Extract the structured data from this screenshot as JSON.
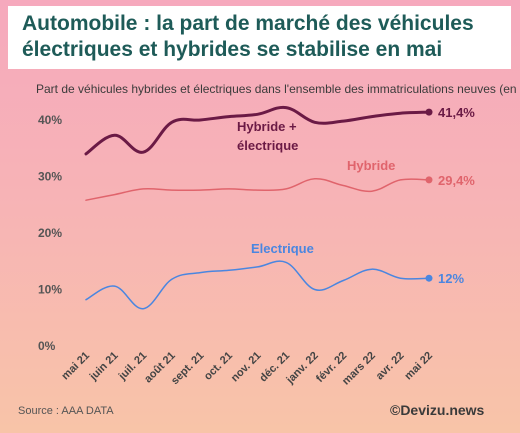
{
  "title_line1": "Automobile : la part de marché des véhicules",
  "title_line2": "électriques et hybrides se stabilise en mai",
  "subtitle": "Part de véhicules hybrides et électriques dans l'ensemble des immatriculations neuves (en %)",
  "source": "Source : AAA DATA",
  "brand": "©Devizu.news",
  "chart_data": {
    "type": "line",
    "title": "Automobile : la part de marché des véhicules électriques et hybrides se stabilise en mai",
    "subtitle": "Part de véhicules hybrides et électriques dans l'ensemble des immatriculations neuves (en %)",
    "categories": [
      "mai 21",
      "juin 21",
      "juil. 21",
      "août 21",
      "sept. 21",
      "oct. 21",
      "nov. 21",
      "déc. 21",
      "janv. 22",
      "févr. 22",
      "mars 22",
      "avr. 22",
      "mai 22"
    ],
    "yticks": [
      0,
      10,
      20,
      30,
      40
    ],
    "ytick_labels": [
      "0%",
      "10%",
      "20%",
      "30%",
      "40%"
    ],
    "ylim": [
      0,
      44
    ],
    "grid": false,
    "series": [
      {
        "name": "Hybride + électrique",
        "label_lines": [
          "Hybride +",
          "électrique"
        ],
        "color": "#6b1a45",
        "stroke_width": 3,
        "values": [
          34.0,
          37.3,
          34.3,
          39.6,
          40.0,
          40.6,
          41.0,
          42.2,
          39.6,
          39.8,
          40.6,
          41.2,
          41.4
        ],
        "end_label": "41,4%"
      },
      {
        "name": "Hybride",
        "label_lines": [
          "Hybride"
        ],
        "color": "#e0646c",
        "stroke_width": 1.5,
        "values": [
          25.8,
          26.8,
          27.8,
          27.6,
          27.6,
          27.8,
          27.6,
          27.8,
          29.6,
          28.4,
          27.4,
          29.4,
          29.4
        ],
        "end_label": "29,4%"
      },
      {
        "name": "Electrique",
        "label_lines": [
          "Electrique"
        ],
        "color": "#4a86e0",
        "stroke_width": 1.5,
        "values": [
          8.2,
          10.6,
          6.6,
          11.8,
          13.0,
          13.4,
          14.0,
          14.8,
          10.0,
          11.6,
          13.6,
          12.0,
          12.0
        ],
        "end_label": "12%"
      }
    ]
  }
}
